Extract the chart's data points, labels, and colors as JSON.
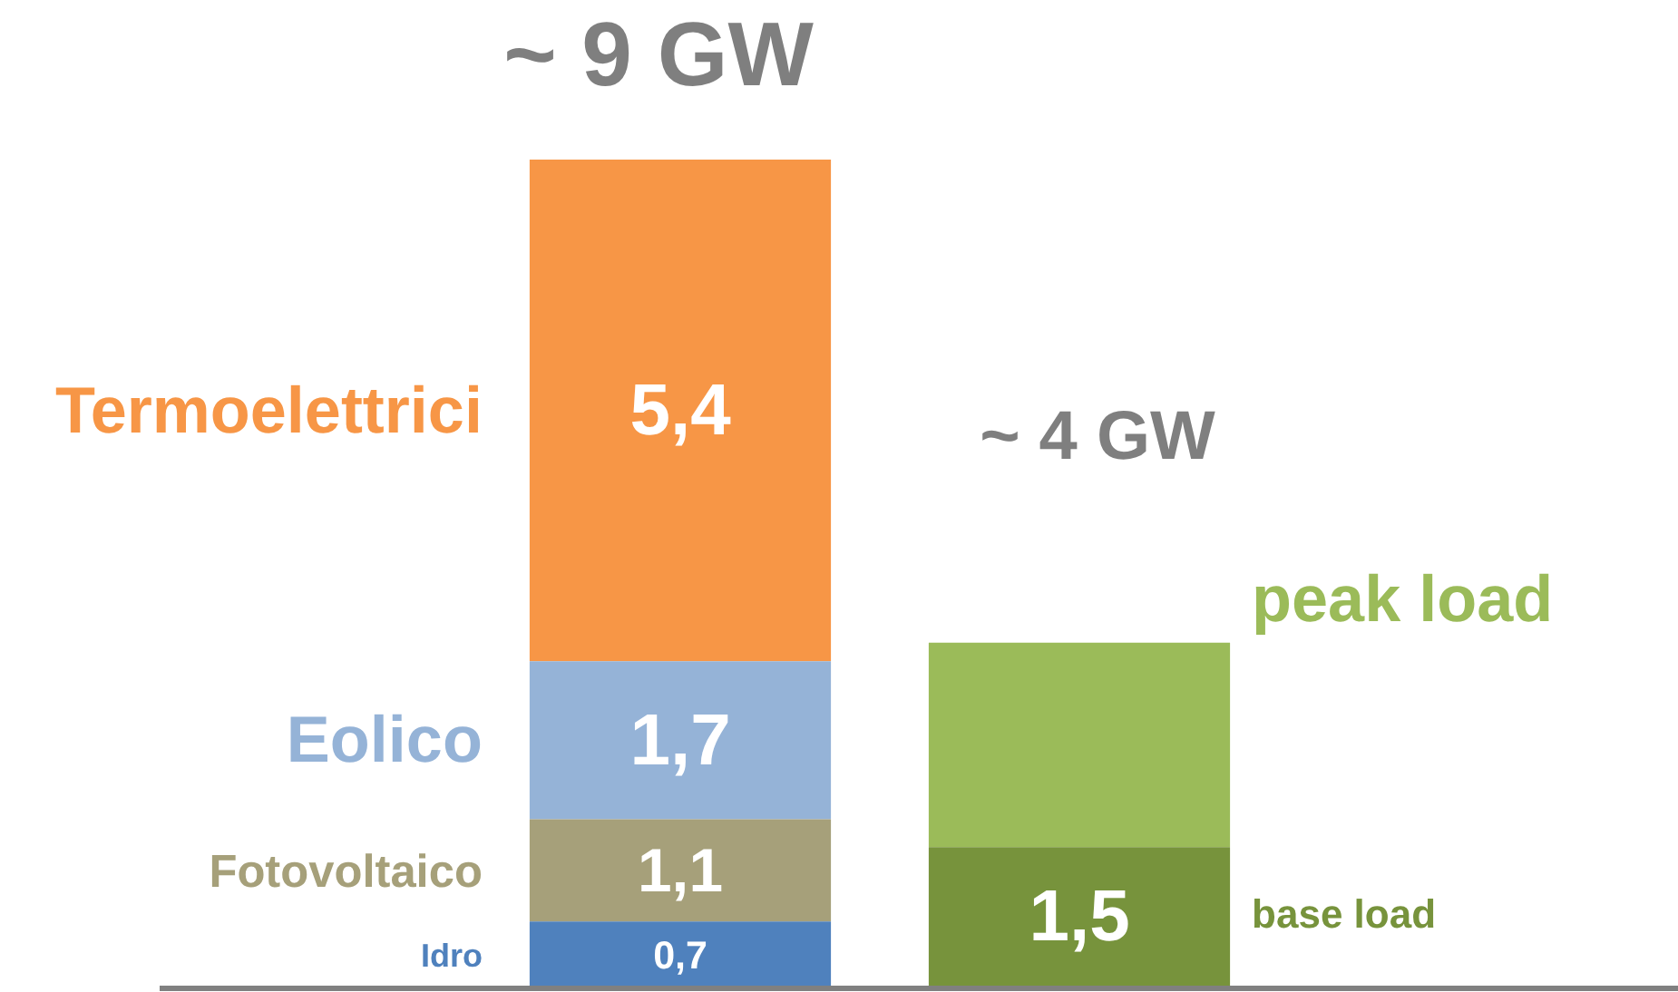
{
  "chart_data": {
    "type": "bar",
    "stacked": true,
    "categories": [
      null,
      null
    ],
    "series": [
      {
        "name": "Idro",
        "color": "#4f81bd",
        "values": [
          0.7,
          null
        ],
        "value_labels": [
          "0,7",
          null
        ]
      },
      {
        "name": "Fotovoltaico",
        "color": "#a6a07a",
        "values": [
          1.1,
          null
        ],
        "value_labels": [
          "1,1",
          null
        ]
      },
      {
        "name": "Eolico",
        "color": "#95b3d7",
        "values": [
          1.7,
          null
        ],
        "value_labels": [
          "1,7",
          null
        ]
      },
      {
        "name": "Termoelettrici",
        "color": "#f79646",
        "values": [
          5.4,
          null
        ],
        "value_labels": [
          "5,4",
          null
        ]
      },
      {
        "name": "base load",
        "color": "#77933c",
        "values": [
          null,
          1.5
        ],
        "value_labels": [
          null,
          "1,5"
        ]
      },
      {
        "name": "peak load",
        "color": "#9bbb59",
        "values": [
          null,
          2.2
        ],
        "value_labels": [
          null,
          null
        ]
      }
    ],
    "annotations": [
      "~ 9 GW",
      "~ 4 GW"
    ],
    "tick_labels": false,
    "legend": false
  }
}
